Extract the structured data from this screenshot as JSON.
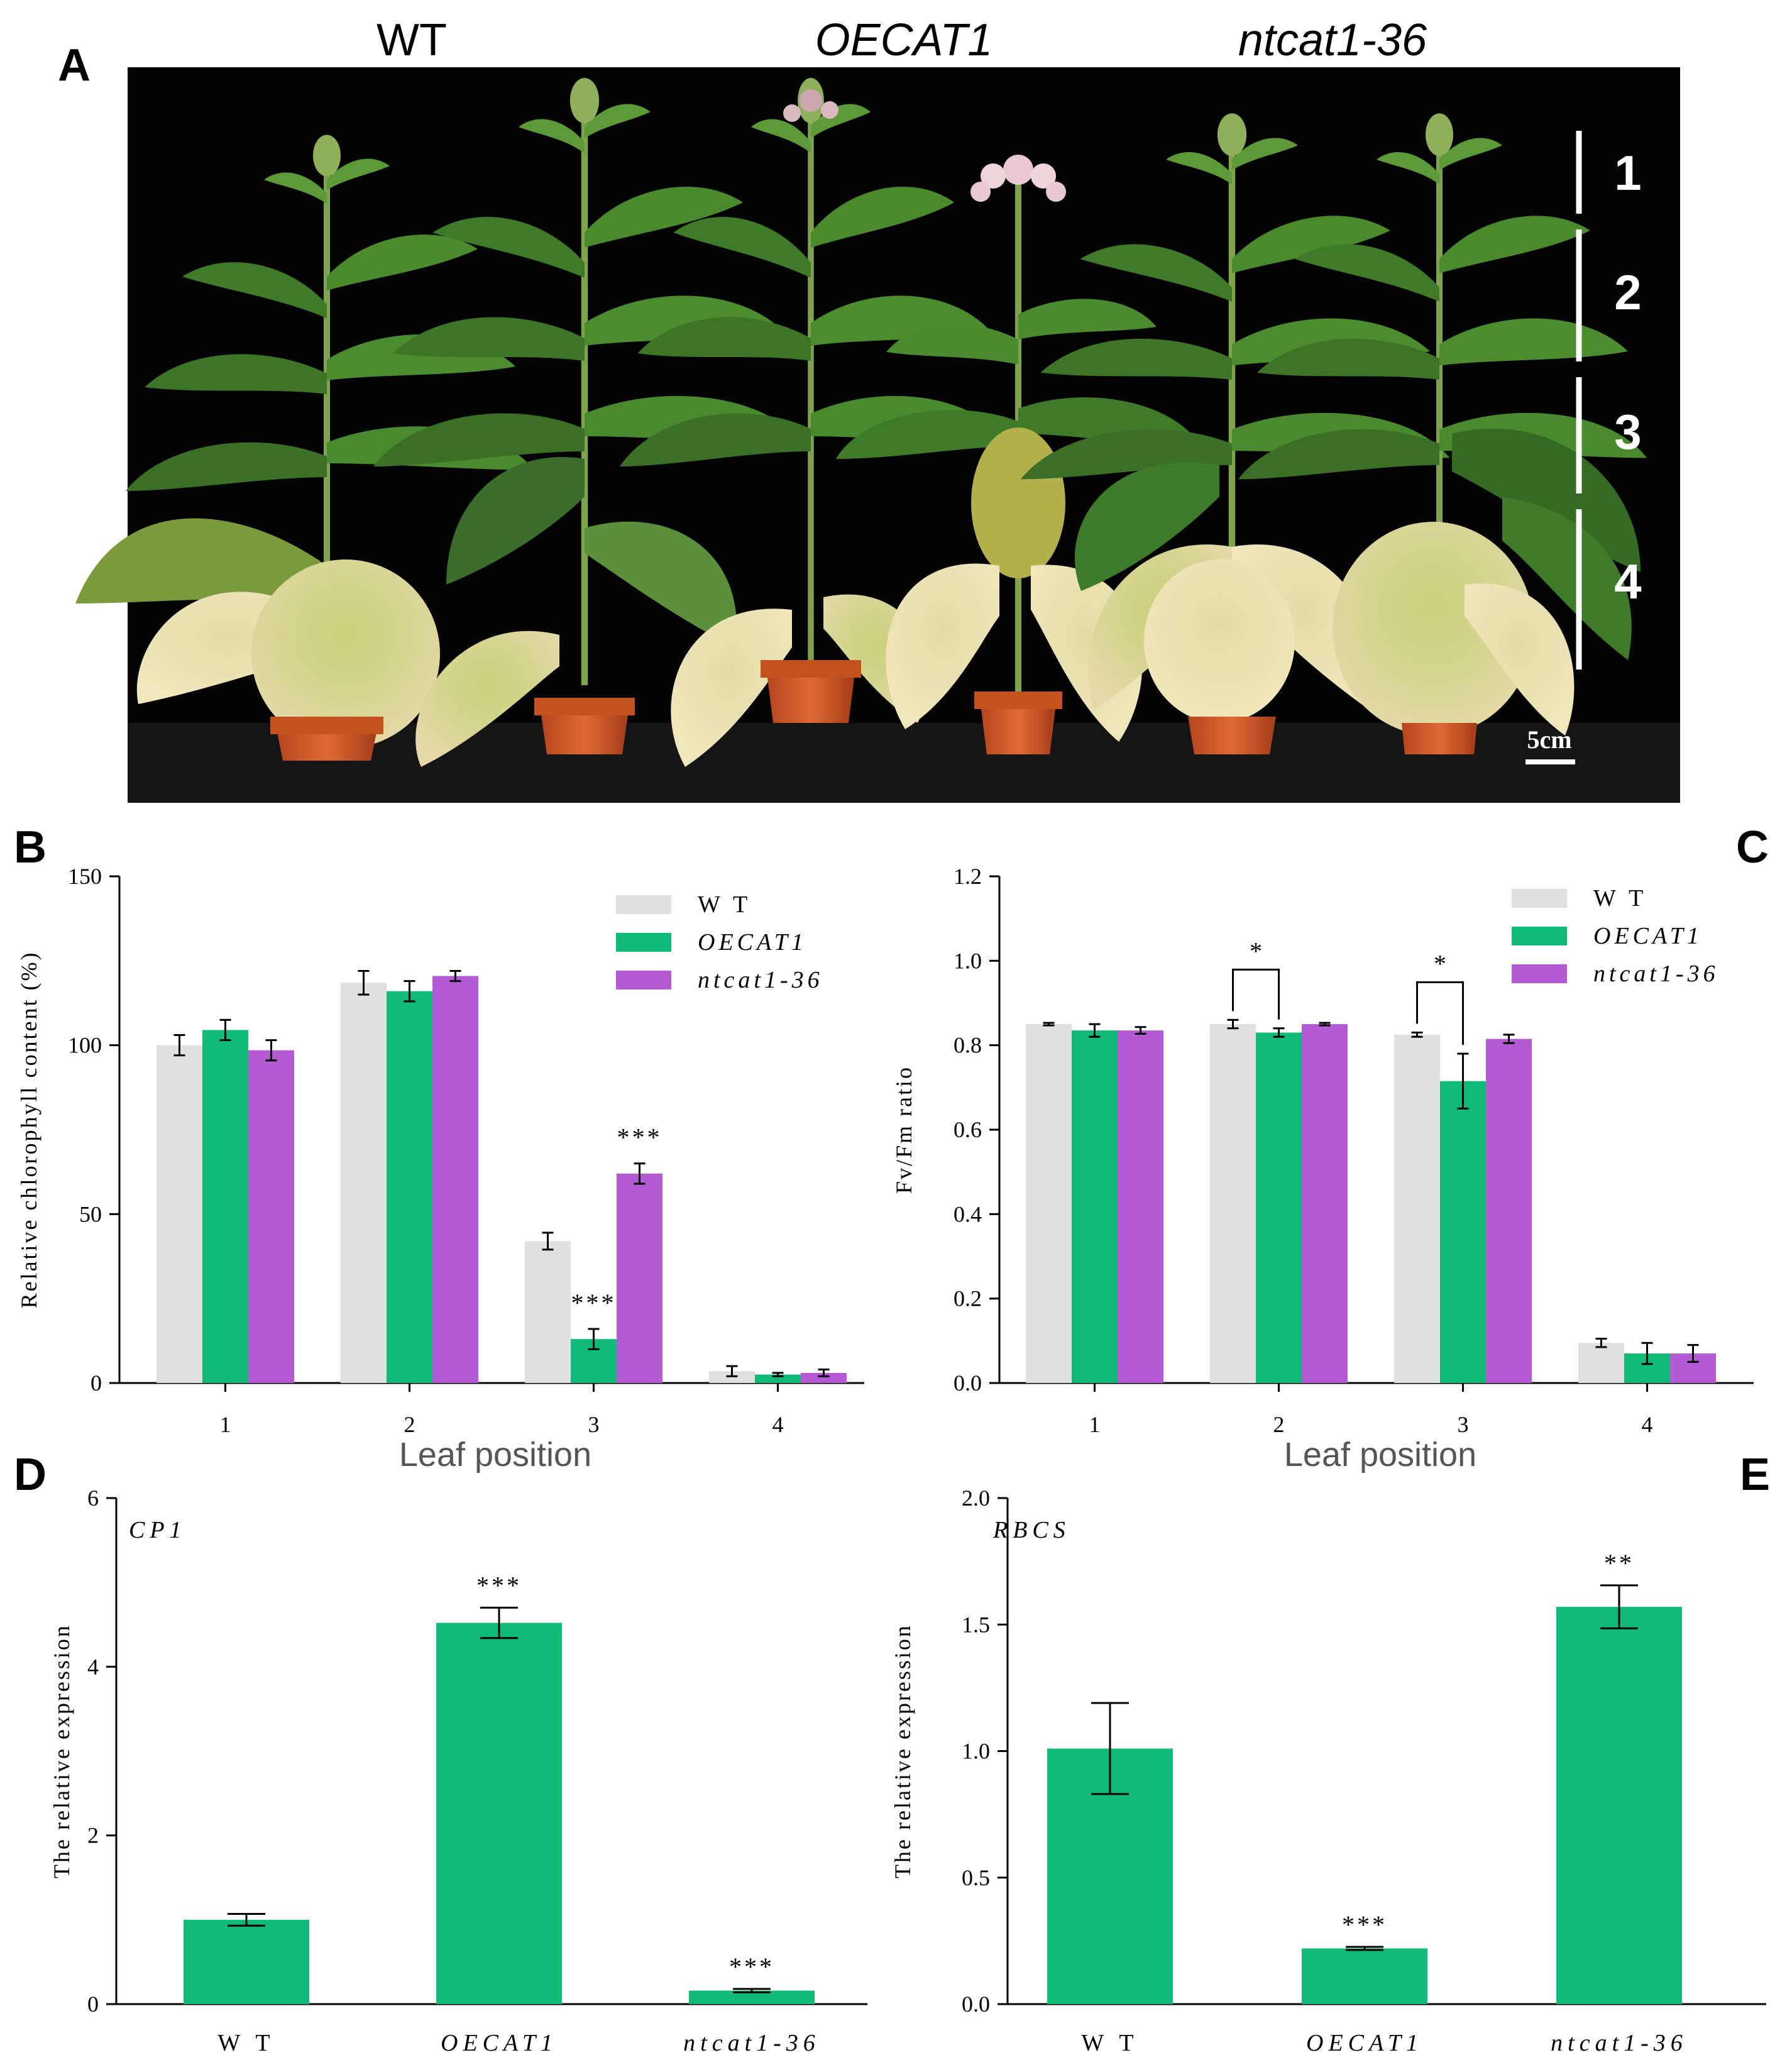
{
  "panel_letters": {
    "A": "A",
    "B": "B",
    "C": "C",
    "D": "D",
    "E": "E"
  },
  "photo": {
    "genotype_labels": [
      "WT",
      "OECAT1",
      "ntcat1-36"
    ],
    "leaf_section_labels": [
      "1",
      "2",
      "3",
      "4"
    ],
    "scale_bar_label": "5cm"
  },
  "colors": {
    "WT": "#e0e0e0",
    "OECAT1": "#11bb77",
    "ntcat1-36": "#b45ad2",
    "axis": "#000000",
    "background": "#ffffff",
    "photo_bg": "#030303"
  },
  "chart_data": [
    {
      "id": "B",
      "type": "bar",
      "categories": [
        "1",
        "2",
        "3",
        "4"
      ],
      "xlabel": "Leaf position",
      "ylabel": "Relative chlorophyll content (%)",
      "ylim": [
        0,
        150
      ],
      "yticks": [
        "0",
        "50",
        "100",
        "150"
      ],
      "legend": [
        "W T",
        "OECAT1",
        "ntcat1-36"
      ],
      "series": [
        {
          "name": "WT",
          "values": [
            100,
            118.5,
            42,
            3.5
          ],
          "errors": [
            3,
            3.5,
            2.5,
            1.5
          ]
        },
        {
          "name": "OECAT1",
          "values": [
            104.5,
            116,
            13,
            2.5
          ],
          "errors": [
            3,
            3,
            3,
            0.5
          ]
        },
        {
          "name": "ntcat1-36",
          "values": [
            98.5,
            120.5,
            62,
            3
          ],
          "errors": [
            3,
            1.5,
            3,
            1
          ]
        }
      ],
      "annotations": [
        {
          "series": "OECAT1",
          "category": "3",
          "text": "***"
        },
        {
          "series": "ntcat1-36",
          "category": "3",
          "text": "***"
        }
      ]
    },
    {
      "id": "C",
      "type": "bar",
      "categories": [
        "1",
        "2",
        "3",
        "4"
      ],
      "xlabel": "Leaf position",
      "ylabel": "Fv/Fm ratio",
      "ylim": [
        0,
        1.2
      ],
      "yticks": [
        "0.0",
        "0.2",
        "0.4",
        "0.6",
        "0.8",
        "1.0",
        "1.2"
      ],
      "legend": [
        "W T",
        "OECAT1",
        "ntcat1-36"
      ],
      "series": [
        {
          "name": "WT",
          "values": [
            0.85,
            0.85,
            0.825,
            0.095
          ],
          "errors": [
            0.003,
            0.01,
            0.005,
            0.01
          ]
        },
        {
          "name": "OECAT1",
          "values": [
            0.835,
            0.83,
            0.715,
            0.07
          ],
          "errors": [
            0.015,
            0.01,
            0.065,
            0.025
          ]
        },
        {
          "name": "ntcat1-36",
          "values": [
            0.835,
            0.85,
            0.815,
            0.07
          ],
          "errors": [
            0.008,
            0.003,
            0.01,
            0.02
          ]
        }
      ],
      "significance_brackets": [
        {
          "category": "2",
          "between": [
            "WT",
            "OECAT1"
          ],
          "text": "*"
        },
        {
          "category": "3",
          "between": [
            "WT",
            "OECAT1"
          ],
          "text": "*"
        }
      ]
    },
    {
      "id": "D",
      "type": "bar",
      "title": "CP1",
      "categories": [
        "W T",
        "OECAT1",
        "ntcat1-36"
      ],
      "ylabel": "The relative expression",
      "ylim": [
        0,
        6
      ],
      "yticks": [
        "0",
        "2",
        "4",
        "6"
      ],
      "values": [
        1.0,
        4.52,
        0.16
      ],
      "errors": [
        0.07,
        0.18,
        0.02
      ],
      "annotations": [
        "",
        "***",
        "***"
      ]
    },
    {
      "id": "E",
      "type": "bar",
      "title": "RBCS",
      "categories": [
        "W T",
        "OECAT1",
        "ntcat1-36"
      ],
      "ylabel": "The relative expression",
      "ylim": [
        0,
        2.0
      ],
      "yticks": [
        "0.0",
        "0.5",
        "1.0",
        "1.5",
        "2.0"
      ],
      "values": [
        1.01,
        0.22,
        1.57
      ],
      "errors": [
        0.18,
        0.006,
        0.085
      ],
      "annotations": [
        "",
        "***",
        "**"
      ]
    }
  ]
}
